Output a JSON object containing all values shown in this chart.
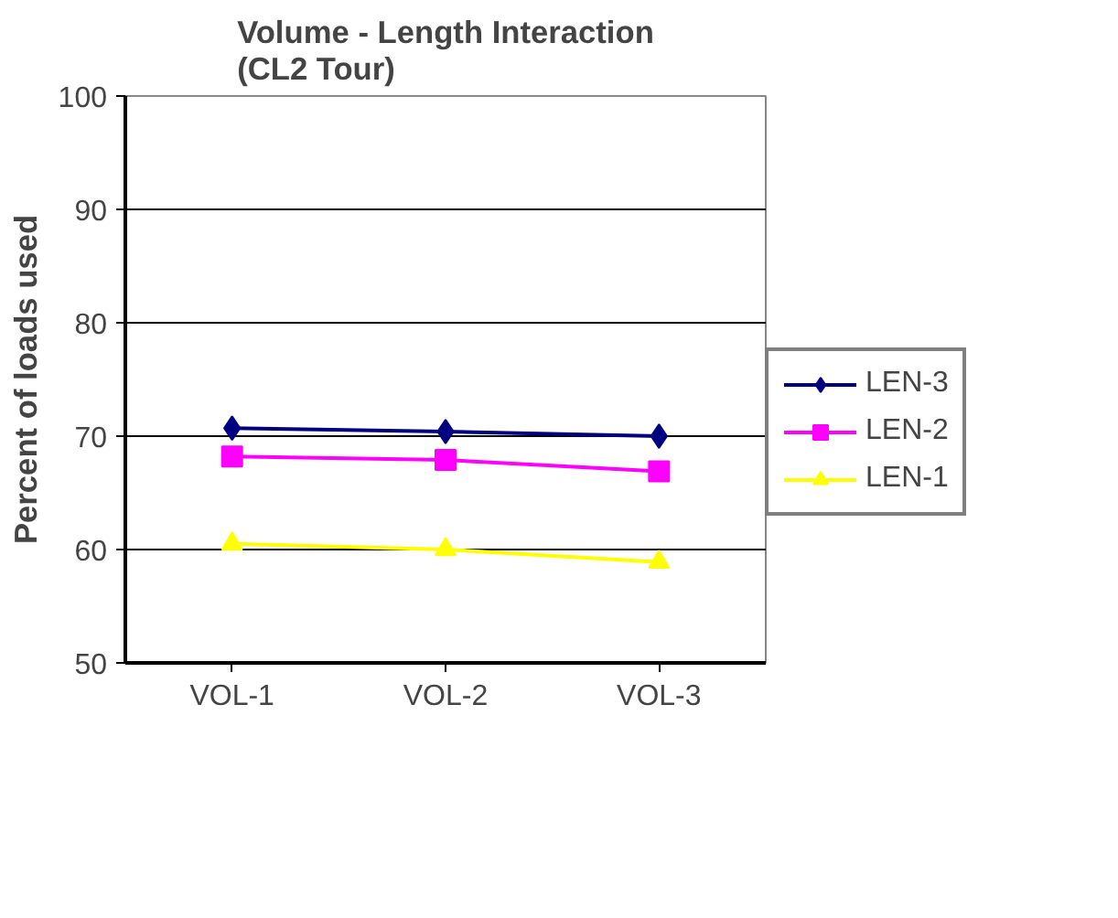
{
  "chart_data": {
    "type": "line",
    "title": "Volume - Length Interaction\n(CL2 Tour)",
    "ylabel": "Percent of loads used",
    "categories": [
      "VOL-1",
      "VOL-2",
      "VOL-3"
    ],
    "series": [
      {
        "name": "LEN-3",
        "color": "#000080",
        "marker": "diamond",
        "values": [
          70.7,
          70.4,
          70.0
        ]
      },
      {
        "name": "LEN-2",
        "color": "#ff00ff",
        "marker": "square",
        "values": [
          68.2,
          67.9,
          66.9
        ]
      },
      {
        "name": "LEN-1",
        "color": "#ffff00",
        "marker": "triangle",
        "values": [
          60.5,
          60.0,
          58.9
        ]
      }
    ],
    "ylim": [
      50,
      100
    ],
    "yticks": [
      50,
      60,
      70,
      80,
      90,
      100
    ],
    "grid": "y",
    "legend": "right"
  }
}
